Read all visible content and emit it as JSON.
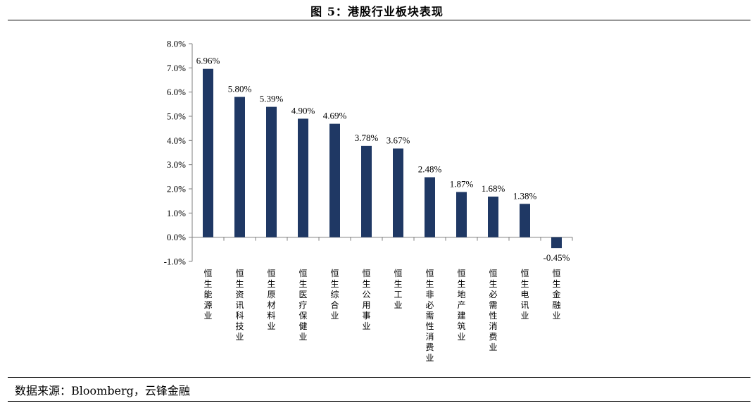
{
  "figure_title": "图 5：港股行业板块表现",
  "source_note": "数据来源：Bloomberg，云锋金融",
  "colors": {
    "bar": "#1f3864",
    "axis": "#7f7f7f"
  },
  "chart_data": {
    "type": "bar",
    "title": "",
    "xlabel": "",
    "ylabel": "",
    "ylim": [
      -1.0,
      8.0
    ],
    "y_ticks": [
      -1.0,
      0.0,
      1.0,
      2.0,
      3.0,
      4.0,
      5.0,
      6.0,
      7.0,
      8.0
    ],
    "y_tick_labels": [
      "-1.0%",
      "0.0%",
      "1.0%",
      "2.0%",
      "3.0%",
      "4.0%",
      "5.0%",
      "6.0%",
      "7.0%",
      "8.0%"
    ],
    "grid": false,
    "categories": [
      "恒生能源业",
      "恒生资讯科技业",
      "恒生原材料业",
      "恒生医疗保健业",
      "恒生综合业",
      "恒生公用事业",
      "恒生工业",
      "恒生非必需性消费业",
      "恒生地产建筑业",
      "恒生必需性消费业",
      "恒生电讯业",
      "恒生金融业"
    ],
    "values": [
      6.96,
      5.8,
      5.39,
      4.9,
      4.69,
      3.78,
      3.67,
      2.48,
      1.87,
      1.68,
      1.38,
      -0.45
    ],
    "data_labels": [
      "6.96%",
      "5.80%",
      "5.39%",
      "4.90%",
      "4.69%",
      "3.78%",
      "3.67%",
      "2.48%",
      "1.87%",
      "1.68%",
      "1.38%",
      "-0.45%"
    ]
  }
}
